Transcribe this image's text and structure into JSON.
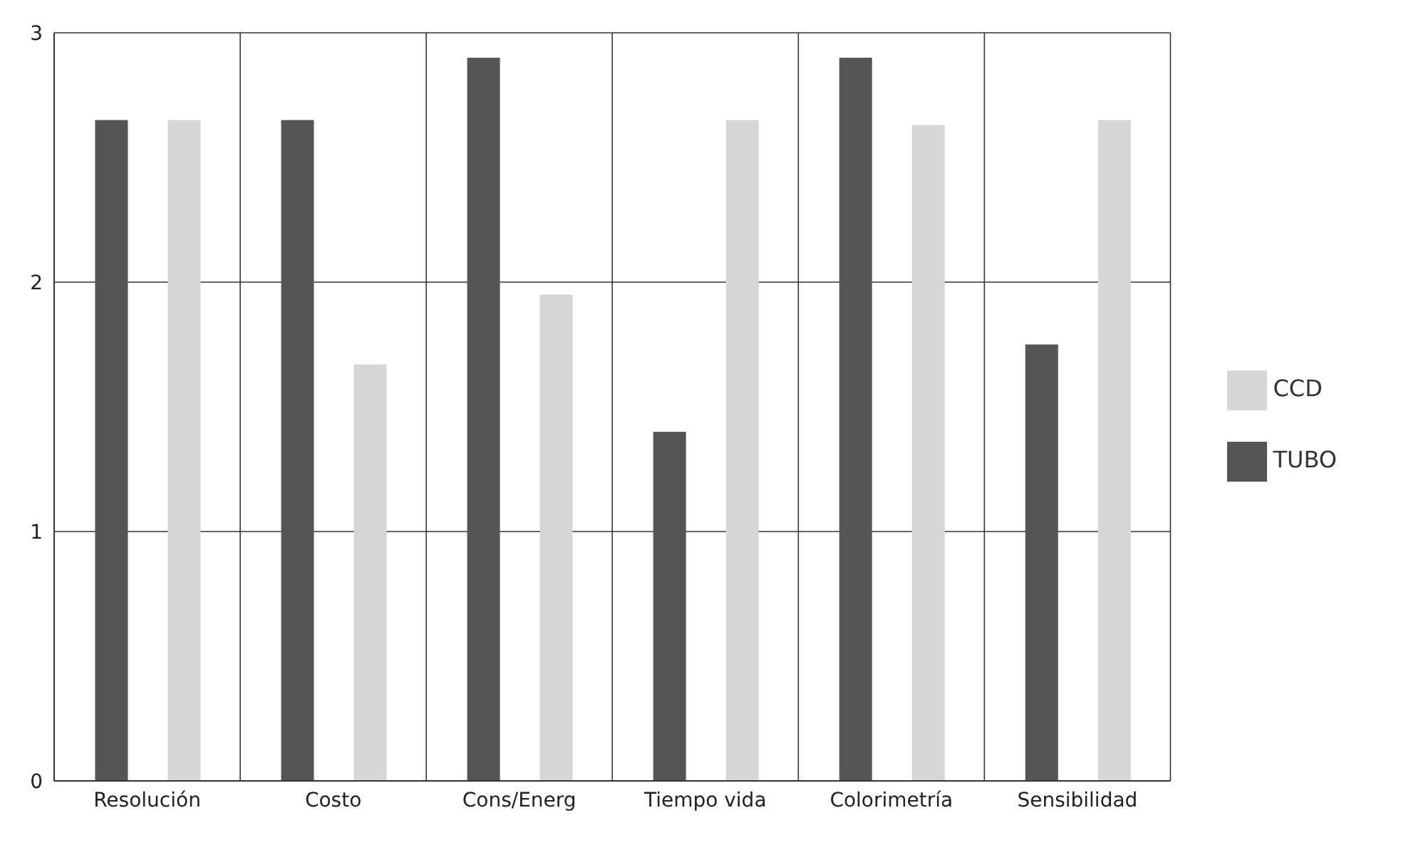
{
  "chart_data": {
    "type": "bar",
    "categories": [
      "Resolución",
      "Costo",
      "Cons/Energ",
      "Tiempo vida",
      "Colorimetría",
      "Sensibilidad"
    ],
    "series": [
      {
        "name": "TUBO",
        "color": "#555555",
        "values": [
          2.65,
          2.65,
          2.9,
          1.4,
          2.9,
          1.75
        ]
      },
      {
        "name": "CCD",
        "color": "#d6d6d6",
        "values": [
          2.65,
          1.67,
          1.95,
          2.65,
          2.63,
          2.65
        ]
      }
    ],
    "ylim": [
      0,
      3
    ],
    "yticks": [
      0,
      1,
      2,
      3
    ],
    "grid": true,
    "legend": "right"
  }
}
